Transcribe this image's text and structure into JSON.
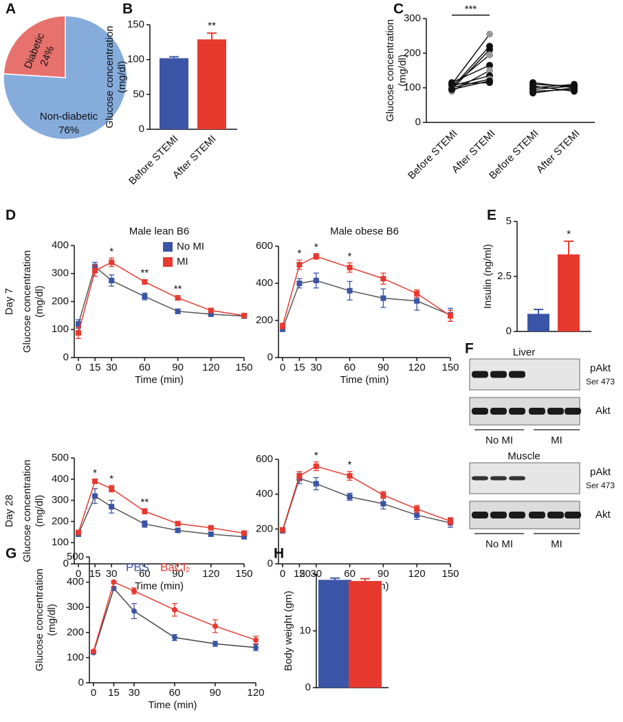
{
  "chart_data": [
    {
      "type": "pie",
      "panel": "A",
      "categories": [
        "Diabetic",
        "Non-diabetic"
      ],
      "values": [
        24,
        76
      ],
      "value_labels": [
        "24%",
        "76%"
      ],
      "colors": [
        "#e7716d",
        "#86acdc"
      ]
    },
    {
      "type": "bar",
      "panel": "B",
      "ylabel": [
        "Glucose concentration",
        "(mg/dl)"
      ],
      "categories": [
        "Before STEMI",
        "After STEMI"
      ],
      "values": [
        102,
        129
      ],
      "errors": [
        2,
        9
      ],
      "colors": [
        "#3b55a6",
        "#e8392f"
      ],
      "ylim": [
        0,
        150
      ],
      "yticks": [
        0,
        50,
        100,
        150
      ],
      "significance": "**"
    },
    {
      "type": "paired",
      "panel": "C",
      "ylabel": [
        "Glucose concentration",
        "(mg/dl)"
      ],
      "categories": [
        "Before STEMI",
        "After STEMI",
        "Before STEMI",
        "After STEMI"
      ],
      "ylim": [
        0,
        300
      ],
      "yticks": [
        0,
        100,
        200,
        300
      ],
      "significance": "***",
      "series": [
        {
          "color": "#999999",
          "values": [
            110,
            255,
            null,
            null
          ]
        },
        {
          "color": "#111111",
          "values": [
            100,
            220,
            null,
            null
          ]
        },
        {
          "color": "#111111",
          "values": [
            95,
            210,
            null,
            null
          ]
        },
        {
          "color": "#999999",
          "values": [
            105,
            195,
            null,
            null
          ]
        },
        {
          "color": "#111111",
          "values": [
            115,
            165,
            null,
            null
          ]
        },
        {
          "color": "#999999",
          "values": [
            90,
            150,
            null,
            null
          ]
        },
        {
          "color": "#111111",
          "values": [
            105,
            135,
            null,
            null
          ]
        },
        {
          "color": "#999999",
          "values": [
            100,
            125,
            null,
            null
          ]
        },
        {
          "color": "#111111",
          "values": [
            95,
            120,
            null,
            null
          ]
        },
        {
          "color": "#111111",
          "values": [
            110,
            115,
            null,
            null
          ]
        },
        {
          "color": "#111111",
          "values": [
            null,
            null,
            85,
            100
          ]
        },
        {
          "color": "#111111",
          "values": [
            null,
            null,
            90,
            95
          ]
        },
        {
          "color": "#111111",
          "values": [
            null,
            null,
            95,
            105
          ]
        },
        {
          "color": "#111111",
          "values": [
            null,
            null,
            100,
            110
          ]
        },
        {
          "color": "#111111",
          "values": [
            null,
            null,
            105,
            90
          ]
        },
        {
          "color": "#111111",
          "values": [
            null,
            null,
            110,
            105
          ]
        },
        {
          "color": "#111111",
          "values": [
            null,
            null,
            115,
            100
          ]
        }
      ]
    },
    {
      "type": "line",
      "panel": "D",
      "title": "Male lean B6",
      "row_label": "Day 7",
      "ylabel": [
        "Glucose concentration",
        "(mg/dl)"
      ],
      "xlabel": "Time (min)",
      "marker": "square",
      "legend": true,
      "x": [
        0,
        15,
        30,
        60,
        90,
        120,
        150
      ],
      "xlim": [
        0,
        150
      ],
      "xticks": [
        0,
        15,
        30,
        60,
        90,
        120,
        150
      ],
      "ylim": [
        0,
        400
      ],
      "yticks": [
        0,
        100,
        200,
        300,
        400
      ],
      "series": [
        {
          "name": "No MI",
          "color": "#3b55a6",
          "line_color": "#555555",
          "values": [
            120,
            325,
            275,
            218,
            165,
            155,
            148
          ],
          "errors": [
            15,
            15,
            20,
            12,
            8,
            8,
            6
          ]
        },
        {
          "name": "MI",
          "color": "#e8392f",
          "values": [
            88,
            310,
            340,
            270,
            213,
            168,
            150
          ],
          "errors": [
            20,
            20,
            15,
            8,
            8,
            8,
            6
          ]
        }
      ],
      "annotations": [
        {
          "x": 30,
          "text": "*"
        },
        {
          "x": 60,
          "text": "**"
        },
        {
          "x": 90,
          "text": "**"
        }
      ]
    },
    {
      "type": "line",
      "title": "Male obese B6",
      "xlabel": "Time (min)",
      "marker": "square",
      "x": [
        0,
        15,
        30,
        60,
        90,
        120,
        150
      ],
      "xlim": [
        0,
        150
      ],
      "xticks": [
        0,
        15,
        30,
        60,
        90,
        120,
        150
      ],
      "ylim": [
        0,
        600
      ],
      "yticks": [
        0,
        200,
        400,
        600
      ],
      "series": [
        {
          "name": "No MI",
          "color": "#3b55a6",
          "line_color": "#555555",
          "values": [
            155,
            400,
            415,
            360,
            320,
            305,
            230
          ],
          "errors": [
            15,
            25,
            40,
            50,
            50,
            50,
            35
          ]
        },
        {
          "name": "MI",
          "color": "#e8392f",
          "values": [
            170,
            500,
            545,
            485,
            425,
            345,
            225
          ],
          "errors": [
            15,
            25,
            15,
            25,
            30,
            20,
            30
          ]
        }
      ],
      "annotations": [
        {
          "x": 15,
          "text": "*"
        },
        {
          "x": 30,
          "text": "*"
        },
        {
          "x": 60,
          "text": "*"
        }
      ]
    },
    {
      "type": "line",
      "row_label": "Day 28",
      "ylabel": [
        "Glucose concentration",
        "(mg/dl)"
      ],
      "xlabel": "Time (min)",
      "marker": "square",
      "x": [
        0,
        15,
        30,
        60,
        90,
        120,
        150
      ],
      "xlim": [
        0,
        150
      ],
      "xticks": [
        0,
        15,
        30,
        60,
        90,
        120,
        150
      ],
      "ylim": [
        0,
        500
      ],
      "yticks": [
        0,
        100,
        200,
        300,
        400,
        500
      ],
      "series": [
        {
          "name": "No MI",
          "color": "#3b55a6",
          "line_color": "#555555",
          "values": [
            140,
            320,
            270,
            188,
            158,
            140,
            128
          ],
          "errors": [
            8,
            35,
            30,
            15,
            10,
            8,
            6
          ]
        },
        {
          "name": "MI",
          "color": "#e8392f",
          "values": [
            148,
            390,
            355,
            248,
            190,
            170,
            145
          ],
          "errors": [
            6,
            8,
            15,
            12,
            8,
            6,
            6
          ]
        }
      ],
      "annotations": [
        {
          "x": 15,
          "text": "*"
        },
        {
          "x": 30,
          "text": "*"
        },
        {
          "x": 60,
          "text": "**"
        }
      ]
    },
    {
      "type": "line",
      "xlabel": "Time (min)",
      "marker": "square",
      "x": [
        0,
        15,
        30,
        60,
        90,
        120,
        150
      ],
      "xlim": [
        0,
        150
      ],
      "xticks": [
        0,
        15,
        30,
        60,
        90,
        120,
        150
      ],
      "ylim": [
        0,
        600
      ],
      "yticks": [
        0,
        200,
        400,
        600
      ],
      "series": [
        {
          "name": "No MI",
          "color": "#3b55a6",
          "line_color": "#555555",
          "values": [
            190,
            490,
            460,
            385,
            345,
            280,
            235
          ],
          "errors": [
            10,
            30,
            35,
            20,
            30,
            25,
            25
          ]
        },
        {
          "name": "MI",
          "color": "#e8392f",
          "values": [
            195,
            505,
            560,
            505,
            395,
            315,
            245
          ],
          "errors": [
            10,
            25,
            25,
            25,
            20,
            20,
            20
          ]
        }
      ],
      "annotations": [
        {
          "x": 30,
          "text": "*"
        },
        {
          "x": 60,
          "text": "*"
        }
      ]
    },
    {
      "type": "bar",
      "panel": "E",
      "ylabel": "Insulin (ng/ml)",
      "categories": [
        null,
        null
      ],
      "values": [
        0.8,
        3.5
      ],
      "errors": [
        0.2,
        0.6
      ],
      "colors": [
        "#3b55a6",
        "#e8392f"
      ],
      "ylim": [
        0,
        5
      ],
      "yticks": [
        0,
        2.5,
        5
      ],
      "significance": "*"
    },
    {
      "type": "line",
      "panel": "G",
      "ylabel": [
        "Glucose concentration",
        "(mg/dl)"
      ],
      "xlabel": "Time (min)",
      "marker": "circle",
      "legend": true,
      "x": [
        0,
        15,
        30,
        60,
        90,
        120
      ],
      "xlim": [
        0,
        120
      ],
      "xticks": [
        0,
        15,
        30,
        60,
        90,
        120
      ],
      "ylim": [
        0,
        500
      ],
      "yticks": [
        0,
        100,
        200,
        300,
        400,
        500
      ],
      "series": [
        {
          "name": "PBS",
          "color": "#3b55a6",
          "line_color": "#444444",
          "values": [
            120,
            375,
            285,
            180,
            155,
            140
          ],
          "errors": [
            5,
            8,
            30,
            12,
            10,
            12
          ]
        },
        {
          "name": "BaCl₂",
          "color": "#e8392f",
          "values": [
            125,
            400,
            365,
            290,
            225,
            170
          ],
          "errors": [
            5,
            5,
            12,
            25,
            25,
            15
          ]
        }
      ]
    },
    {
      "type": "bar",
      "panel": "H",
      "ylabel": "Body weight (gm)",
      "categories": [
        null,
        null
      ],
      "values": [
        19,
        18.8
      ],
      "errors": [
        0.3,
        0.4
      ],
      "colors": [
        "#3b55a6",
        "#e8392f"
      ],
      "ylim": [
        0,
        20
      ],
      "yticks": [
        0,
        10,
        20
      ]
    }
  ],
  "blots": {
    "panel": "F",
    "tissues": [
      {
        "name": "Liver",
        "rows": [
          {
            "label": "pAkt",
            "sublabel": "Ser 473"
          },
          {
            "label": "Akt"
          }
        ],
        "groups": [
          "No MI",
          "MI"
        ]
      },
      {
        "name": "Muscle",
        "rows": [
          {
            "label": "pAkt",
            "sublabel": "Ser 473"
          },
          {
            "label": "Akt"
          }
        ],
        "groups": [
          "No MI",
          "MI"
        ]
      }
    ]
  }
}
